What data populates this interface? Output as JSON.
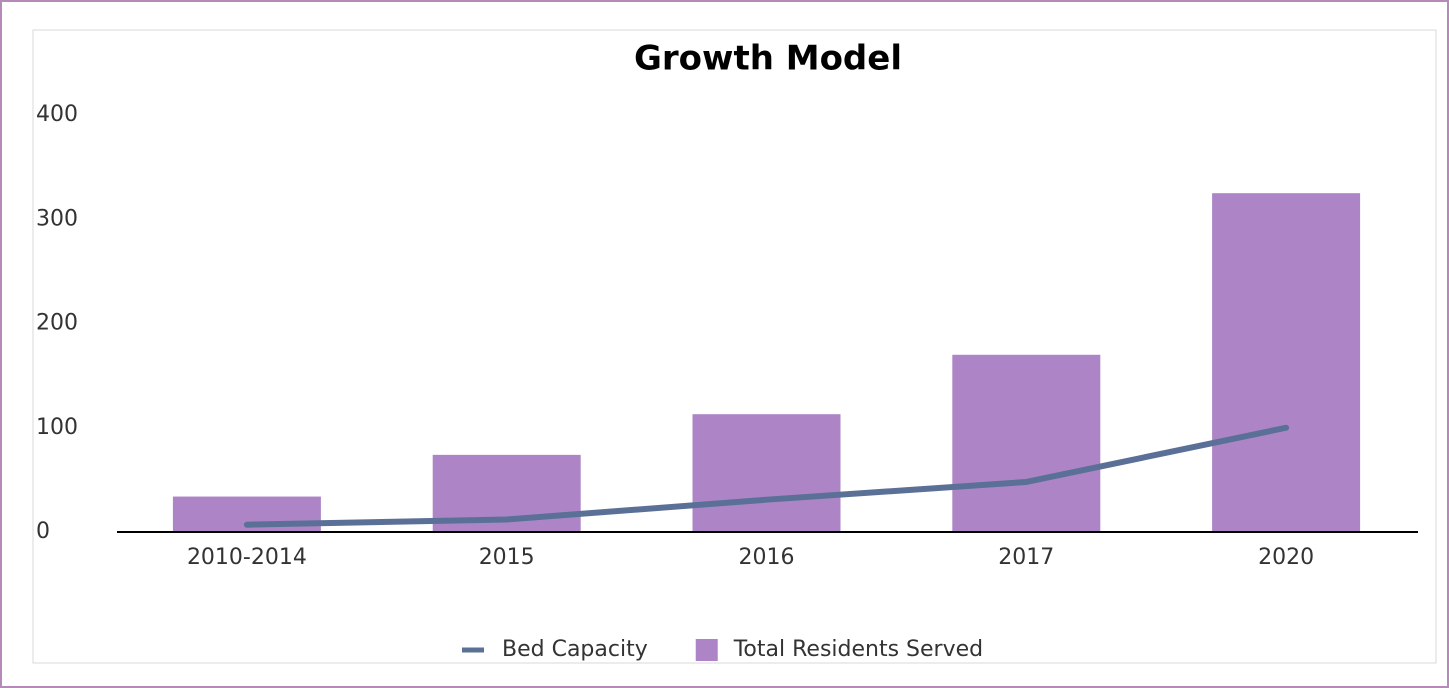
{
  "chart_data": {
    "type": "bar",
    "title": "Growth Model",
    "categories": [
      "2010-2014",
      "2015",
      "2016",
      "2017",
      "2020"
    ],
    "series": [
      {
        "name": "Bed Capacity",
        "type": "line",
        "color": "#5b7097",
        "values": [
          7,
          12,
          31,
          48,
          100
        ]
      },
      {
        "name": "Total Residents Served",
        "type": "bar",
        "color": "#ad85c6",
        "values": [
          34,
          74,
          113,
          170,
          325
        ]
      }
    ],
    "ylim": [
      0,
      400
    ],
    "yticks": [
      0,
      100,
      200,
      300,
      400
    ],
    "grid": false,
    "legend": "bottom"
  }
}
